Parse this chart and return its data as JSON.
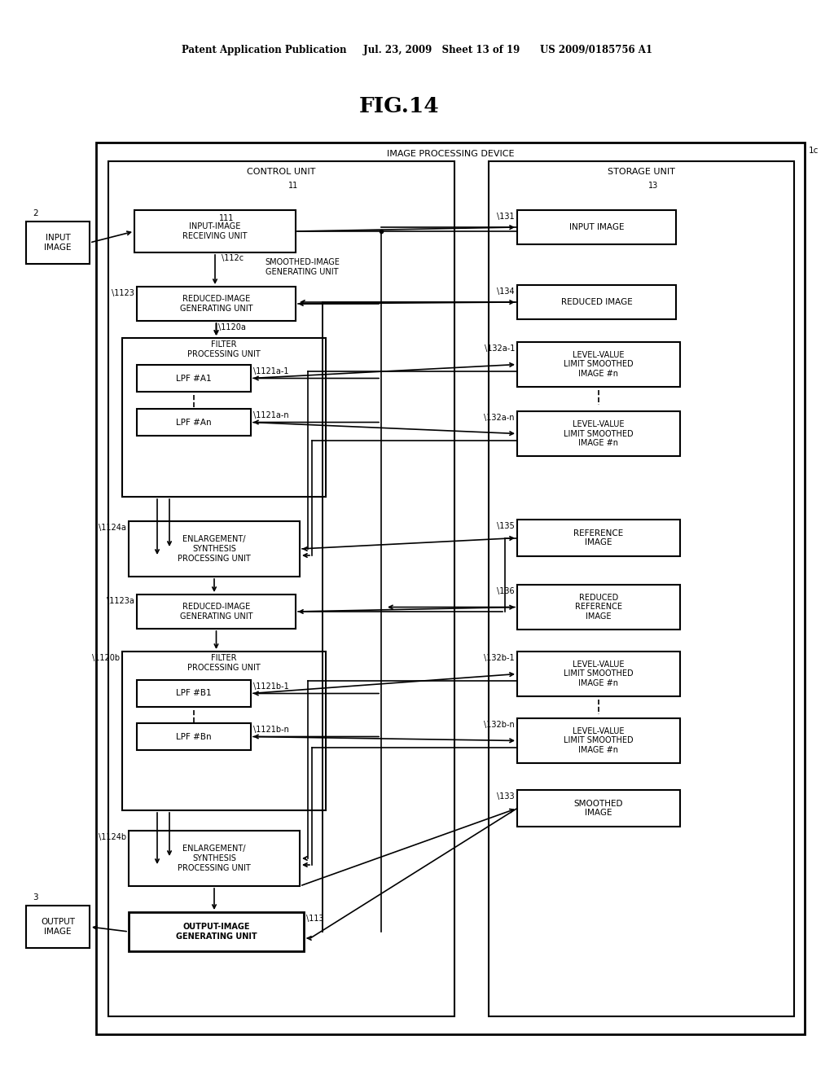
{
  "bg_color": "#ffffff",
  "header": "Patent Application Publication     Jul. 23, 2009   Sheet 13 of 19      US 2009/0185756 A1",
  "title": "FIG.14",
  "fig_label": "1c",
  "outer_label": "IMAGE PROCESSING DEVICE",
  "ctrl_label": "CONTROL UNIT",
  "ctrl_ref": "11",
  "stor_label": "STORAGE UNIT",
  "stor_ref": "13",
  "input_ext_label": "INPUT\nIMAGE",
  "input_ext_ref": "2",
  "output_ext_label": "OUTPUT\nIMAGE",
  "output_ext_ref": "3",
  "ir_label": "INPUT-IMAGE\nRECEIVING UNIT",
  "ir_ref": "111",
  "ref_112c": "\\112c",
  "smg_label": "SMOOTHED-IMAGE\nGENERATING UNIT",
  "rga_label": "REDUCED-IMAGE\nGENERATING UNIT",
  "rga_ref": "\\1123",
  "fpa_label": "FILTER\nPROCESSING UNIT",
  "fpa_ref": "\\1120a",
  "lpfa1_label": "LPF #A1",
  "lpfa1_ref": "\\1121a-1",
  "lpfan_label": "LPF #An",
  "lpfan_ref": "\\1121a-n",
  "epa_label": "ENLARGEMENT/\nSYNTHESIS\nPROCESSING UNIT",
  "epa_ref": "\\1124a",
  "rgb_label": "REDUCED-IMAGE\nGENERATING UNIT",
  "rgb_ref": "\\1123a",
  "fpb_label": "FILTER\nPROCESSING UNIT",
  "fpb_ref": "\\1120b",
  "lpfb1_label": "LPF #B1",
  "lpfb1_ref": "\\1121b-1",
  "lpfbn_label": "LPF #Bn",
  "lpfbn_ref": "\\1121b-n",
  "epb_label": "ENLARGEMENT/\nSYNTHESIS\nPROCESSING UNIT",
  "epb_ref": "\\1124b",
  "oig_label": "OUTPUT-IMAGE\nGENERATING UNIT",
  "oig_ref": "\\113",
  "si_label": "INPUT IMAGE",
  "si_ref": "\\131",
  "ri_label": "REDUCED IMAGE",
  "ri_ref": "\\134",
  "lva1_label": "LEVEL-VALUE\nLIMIT SMOOTHED\nIMAGE #n",
  "lva1_ref": "\\132a-1",
  "lvan_label": "LEVEL-VALUE\nLIMIT SMOOTHED\nIMAGE #n",
  "lvan_ref": "\\132a-n",
  "ref_label": "REFERENCE\nIMAGE",
  "ref_ref": "\\135",
  "rri_label": "REDUCED\nREFERENCE\nIMAGE",
  "rri_ref": "\\136",
  "lvb1_label": "LEVEL-VALUE\nLIMIT SMOOTHED\nIMAGE #n",
  "lvb1_ref": "\\132b-1",
  "lvbn_label": "LEVEL-VALUE\nLIMIT SMOOTHED\nIMAGE #n",
  "lvbn_ref": "\\132b-n",
  "smi_label": "SMOOTHED\nIMAGE",
  "smi_ref": "\\133"
}
